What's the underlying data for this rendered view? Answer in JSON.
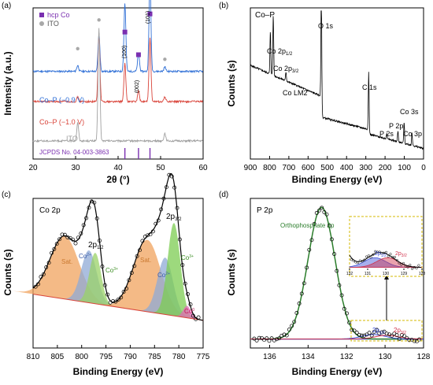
{
  "panels": {
    "a": {
      "letter": "(a)",
      "ylabel": "Intensity (a.u.)",
      "xlabel": "2θ (°)",
      "legend": [
        {
          "label": "hcp Co",
          "color": "#7a2fb0",
          "marker": "square"
        },
        {
          "label": "ITO",
          "color": "#a8a8a8",
          "marker": "circle"
        }
      ],
      "trace_labels": [
        {
          "label": "Co–P (−0.9 V)",
          "color": "#2f6fd6"
        },
        {
          "label": "Co–P (−1.0 V)",
          "color": "#d9443a"
        },
        {
          "label": "ITO",
          "color": "#a0a0a0"
        }
      ],
      "peak_labels": [
        "(100)",
        "(002)",
        "(101)"
      ],
      "jcpds": "JCPDS No. 04-003-3863"
    },
    "b": {
      "letter": "(b)",
      "title": "Co–P",
      "ylabel": "Counts (s)",
      "xlabel": "Binding Energy (eV)",
      "peaks": [
        "Co 2p1/2",
        "Co 2p3/2",
        "O 1s",
        "Co LM2",
        "C 1s",
        "Co 3s",
        "P 2s",
        "P 2p",
        "Co 3p"
      ]
    },
    "c": {
      "letter": "(c)",
      "title": "Co 2p",
      "ylabel": "Counts (s)",
      "xlabel": "Binding Energy (eV)",
      "labels": [
        "2p1/2",
        "2p3/2",
        "Sat.",
        "Sat.",
        "Co2+",
        "Co3+",
        "Co2+",
        "Co3+",
        "Co0"
      ]
    },
    "d": {
      "letter": "(d)",
      "title": "P 2p",
      "ylabel": "Counts (s)",
      "xlabel": "Binding Energy (eV)",
      "legend": "Orthophosphate 2p",
      "labels": [
        "2p1/2",
        "2p3/2"
      ]
    }
  },
  "chart_data": [
    {
      "type": "line",
      "panel": "a",
      "xlabel": "2θ (°)",
      "ylabel": "Intensity (a.u.)",
      "xlim": [
        20,
        60
      ],
      "xticks": [
        20,
        30,
        40,
        50,
        60
      ],
      "series": [
        {
          "name": "Co–P (−0.9 V)",
          "color": "#2f6fd6",
          "offset": 0.58,
          "peaks": [
            [
              30.5,
              0.04
            ],
            [
              35.5,
              0.25
            ],
            [
              41.6,
              0.45
            ],
            [
              44.8,
              0.12
            ],
            [
              47.5,
              0.62
            ],
            [
              51.0,
              0.03
            ]
          ]
        },
        {
          "name": "Co–P (−1.0 V)",
          "color": "#d9443a",
          "offset": 0.38,
          "peaks": [
            [
              30.5,
              0.03
            ],
            [
              35.5,
              0.45
            ],
            [
              41.6,
              0.25
            ],
            [
              44.8,
              0.07
            ],
            [
              47.5,
              0.42
            ],
            [
              51.0,
              0.03
            ]
          ]
        },
        {
          "name": "ITO",
          "color": "#a0a0a0",
          "offset": 0.12,
          "peaks": [
            [
              30.5,
              0.12
            ],
            [
              35.5,
              0.75
            ],
            [
              51.0,
              0.05
            ]
          ]
        }
      ],
      "reference_lines": [
        41.6,
        44.8,
        47.5
      ],
      "hcp_markers": [
        41.6,
        44.8,
        47.5
      ],
      "ito_markers": [
        30.5,
        35.5,
        51.0
      ]
    },
    {
      "type": "line",
      "panel": "b",
      "xlabel": "Binding Energy (eV)",
      "ylabel": "Counts (s)",
      "xlim": [
        900,
        0
      ],
      "xticks": [
        900,
        800,
        700,
        600,
        500,
        400,
        300,
        200,
        100,
        0
      ],
      "peaks": [
        {
          "name": "Co 2p1/2",
          "x": 796,
          "height": 0.28
        },
        {
          "name": "Co 2p3/2",
          "x": 781,
          "height": 0.4
        },
        {
          "name": "Co LM2",
          "x": 715,
          "height": 0.06
        },
        {
          "name": "O 1s",
          "x": 531,
          "height": 0.8
        },
        {
          "name": "C 1s",
          "x": 285,
          "height": 0.38
        },
        {
          "name": "P 2s",
          "x": 191,
          "height": 0.04
        },
        {
          "name": "P 2p",
          "x": 133,
          "height": 0.07
        },
        {
          "name": "Co 3s",
          "x": 101,
          "height": 0.14
        },
        {
          "name": "Co 3p",
          "x": 60,
          "height": 0.08
        }
      ]
    },
    {
      "type": "line",
      "panel": "c",
      "xlabel": "Binding Energy (eV)",
      "ylabel": "Counts (s)",
      "xlim": [
        810,
        775
      ],
      "xticks": [
        810,
        805,
        800,
        795,
        790,
        785,
        780,
        775
      ],
      "components": [
        {
          "name": "Sat.",
          "center": 803.5,
          "height": 0.42,
          "width": 3.0,
          "color": "#f0a35e"
        },
        {
          "name": "Co2+",
          "center": 798.5,
          "height": 0.35,
          "width": 1.6,
          "color": "#8fa9d6"
        },
        {
          "name": "Co3+",
          "center": 797.2,
          "height": 0.34,
          "width": 1.2,
          "color": "#9ad167"
        },
        {
          "name": "Sat.",
          "center": 786.5,
          "height": 0.48,
          "width": 2.8,
          "color": "#f0a35e"
        },
        {
          "name": "Co2+",
          "center": 782.8,
          "height": 0.38,
          "width": 1.6,
          "color": "#8fa9d6"
        },
        {
          "name": "Co3+",
          "center": 781.0,
          "height": 0.62,
          "width": 1.3,
          "color": "#7ccc52"
        },
        {
          "name": "Co0",
          "center": 778.3,
          "height": 0.08,
          "width": 0.8,
          "color": "#e36ab6"
        }
      ]
    },
    {
      "type": "line",
      "panel": "d",
      "xlabel": "Binding Energy (eV)",
      "ylabel": "Counts (s)",
      "xlim": [
        137,
        128
      ],
      "xticks": [
        136,
        134,
        132,
        130,
        128
      ],
      "components": [
        {
          "name": "Orthophosphate 2p",
          "center": 133.3,
          "height": 0.88,
          "width": 0.7,
          "color": "#2a7d2a"
        },
        {
          "name": "2p1/2",
          "center": 130.6,
          "height": 0.03,
          "width": 0.6,
          "color": "#3b4fd6"
        },
        {
          "name": "2p3/2",
          "center": 129.9,
          "height": 0.025,
          "width": 0.6,
          "color": "#d0304a"
        }
      ],
      "inset": {
        "xlim": [
          132,
          128
        ],
        "xticks": [
          132,
          131,
          130,
          129,
          128
        ]
      }
    }
  ]
}
